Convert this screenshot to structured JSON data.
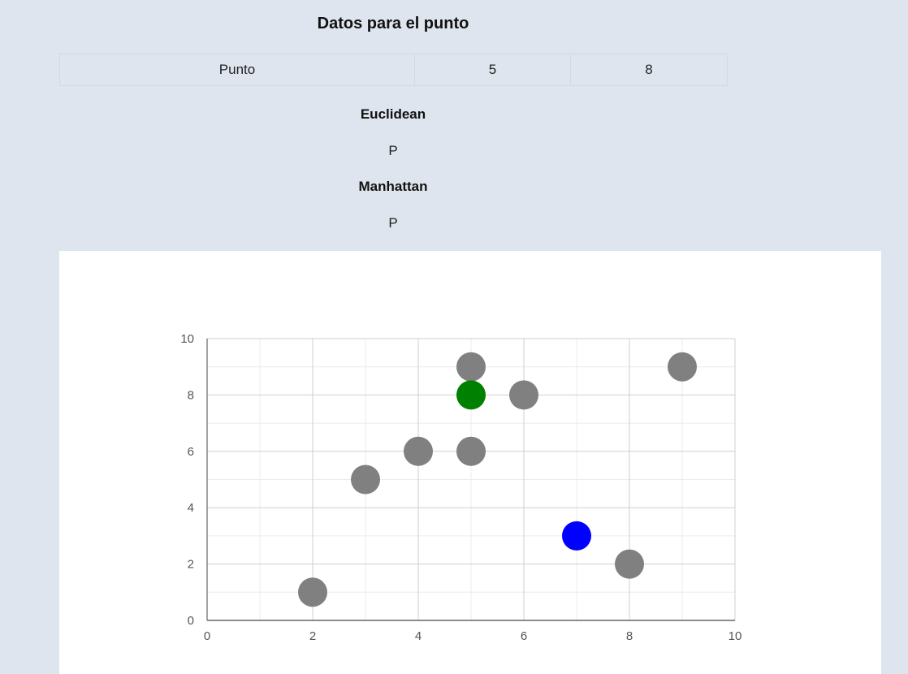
{
  "header": {
    "title": "Datos para el punto"
  },
  "point_table": {
    "label": "Punto",
    "x": "5",
    "y": "8"
  },
  "results": [
    {
      "method": "Euclidean",
      "value": "P"
    },
    {
      "method": "Manhattan",
      "value": "P"
    }
  ],
  "colors": {
    "page_background": "#dfe5ee",
    "default_point": "#808080",
    "query_point": "#008000",
    "highlight_point": "#0000ff"
  },
  "chart_data": {
    "type": "scatter",
    "title": "",
    "xlabel": "",
    "ylabel": "",
    "xlim": [
      0,
      10
    ],
    "ylim": [
      0,
      10
    ],
    "x_ticks": [
      "0",
      "2",
      "4",
      "6",
      "8",
      "10"
    ],
    "y_ticks": [
      "0",
      "2",
      "4",
      "6",
      "8",
      "10"
    ],
    "grid": true,
    "points": [
      {
        "x": 2,
        "y": 1,
        "color": "#808080"
      },
      {
        "x": 3,
        "y": 5,
        "color": "#808080"
      },
      {
        "x": 4,
        "y": 6,
        "color": "#808080"
      },
      {
        "x": 5,
        "y": 6,
        "color": "#808080"
      },
      {
        "x": 5,
        "y": 9,
        "color": "#808080"
      },
      {
        "x": 5,
        "y": 8,
        "color": "#008000"
      },
      {
        "x": 6,
        "y": 8,
        "color": "#808080"
      },
      {
        "x": 7,
        "y": 3,
        "color": "#0000ff"
      },
      {
        "x": 8,
        "y": 2,
        "color": "#808080"
      },
      {
        "x": 9,
        "y": 9,
        "color": "#808080"
      }
    ]
  }
}
